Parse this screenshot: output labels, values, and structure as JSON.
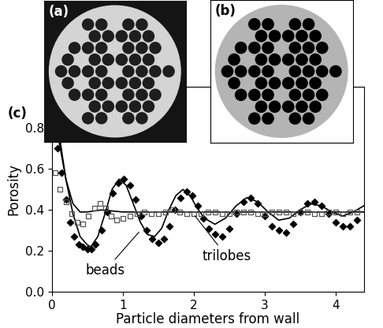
{
  "panel_labels": [
    "(a)",
    "(b)",
    "(c)"
  ],
  "chart_data": {
    "type": "line",
    "xlabel": "Particle diameters from wall",
    "ylabel": "Porosity",
    "xlim": [
      0,
      4.4
    ],
    "ylim": [
      0,
      1.0
    ],
    "xticks": [
      0,
      1,
      2,
      3,
      4
    ],
    "yticks": [
      {
        "value": 0,
        "label": "0.0"
      },
      0.2,
      0.4,
      0.6,
      0.8
    ],
    "grid": false,
    "series": [
      {
        "type": "line",
        "color": "#000000",
        "line_style": "solid",
        "x": [
          0.0,
          0.1,
          0.2,
          0.3,
          0.4,
          0.5,
          0.55,
          0.65,
          0.75,
          0.85,
          0.95,
          1.05,
          1.15,
          1.25,
          1.35,
          1.45,
          1.55,
          1.65,
          1.75,
          1.85,
          1.95,
          2.05,
          2.15,
          2.3,
          2.45,
          2.6,
          2.75,
          2.9,
          3.05,
          3.2,
          3.35,
          3.5,
          3.65,
          3.8,
          3.95,
          4.1,
          4.25,
          4.4
        ],
        "values": [
          1.0,
          0.78,
          0.55,
          0.38,
          0.27,
          0.23,
          0.22,
          0.27,
          0.38,
          0.5,
          0.55,
          0.52,
          0.43,
          0.34,
          0.28,
          0.27,
          0.31,
          0.4,
          0.47,
          0.5,
          0.47,
          0.41,
          0.36,
          0.33,
          0.36,
          0.42,
          0.46,
          0.44,
          0.39,
          0.35,
          0.36,
          0.4,
          0.43,
          0.42,
          0.39,
          0.37,
          0.39,
          0.42
        ]
      },
      {
        "type": "line",
        "color": "#000000",
        "line_style": "solid",
        "x": [
          0.0,
          0.1,
          0.2,
          0.3,
          0.4,
          0.5,
          0.7,
          1.0,
          1.5,
          2.0,
          2.5,
          3.0,
          3.5,
          4.0,
          4.4
        ],
        "values": [
          1.0,
          0.74,
          0.55,
          0.43,
          0.39,
          0.39,
          0.4,
          0.39,
          0.39,
          0.39,
          0.39,
          0.39,
          0.39,
          0.39,
          0.39
        ]
      },
      {
        "type": "scatter",
        "color": "#000000",
        "marker": "filled_diamond",
        "x": [
          0.03,
          0.08,
          0.14,
          0.2,
          0.26,
          0.32,
          0.38,
          0.44,
          0.5,
          0.56,
          0.62,
          0.7,
          0.78,
          0.86,
          0.94,
          1.02,
          1.1,
          1.18,
          1.26,
          1.34,
          1.42,
          1.5,
          1.58,
          1.66,
          1.74,
          1.82,
          1.9,
          1.98,
          2.06,
          2.14,
          2.22,
          2.3,
          2.4,
          2.5,
          2.6,
          2.7,
          2.8,
          2.9,
          3.0,
          3.1,
          3.2,
          3.3,
          3.4,
          3.5,
          3.6,
          3.7,
          3.8,
          3.9,
          4.0,
          4.1,
          4.2,
          4.3
        ],
        "values": [
          0.75,
          0.7,
          0.58,
          0.45,
          0.34,
          0.27,
          0.23,
          0.22,
          0.21,
          0.21,
          0.23,
          0.3,
          0.39,
          0.48,
          0.53,
          0.55,
          0.52,
          0.45,
          0.37,
          0.3,
          0.26,
          0.24,
          0.26,
          0.32,
          0.4,
          0.46,
          0.49,
          0.47,
          0.42,
          0.36,
          0.31,
          0.28,
          0.27,
          0.31,
          0.38,
          0.44,
          0.46,
          0.43,
          0.37,
          0.32,
          0.3,
          0.29,
          0.33,
          0.39,
          0.43,
          0.44,
          0.42,
          0.38,
          0.34,
          0.32,
          0.32,
          0.35
        ]
      },
      {
        "type": "scatter",
        "color": "#555555",
        "marker": "open_square",
        "x": [
          0.05,
          0.12,
          0.2,
          0.28,
          0.36,
          0.44,
          0.52,
          0.6,
          0.68,
          0.76,
          0.84,
          0.92,
          1.0,
          1.1,
          1.2,
          1.3,
          1.4,
          1.5,
          1.6,
          1.7,
          1.8,
          1.9,
          2.0,
          2.1,
          2.2,
          2.3,
          2.4,
          2.5,
          2.6,
          2.7,
          2.8,
          2.9,
          3.0,
          3.1,
          3.2,
          3.3,
          3.4,
          3.5,
          3.6,
          3.7,
          3.8,
          3.9,
          4.0,
          4.1,
          4.2,
          4.3
        ],
        "values": [
          0.58,
          0.5,
          0.44,
          0.38,
          0.34,
          0.33,
          0.37,
          0.41,
          0.43,
          0.41,
          0.37,
          0.35,
          0.36,
          0.37,
          0.38,
          0.39,
          0.38,
          0.38,
          0.39,
          0.4,
          0.39,
          0.38,
          0.38,
          0.38,
          0.39,
          0.39,
          0.38,
          0.38,
          0.39,
          0.39,
          0.39,
          0.38,
          0.38,
          0.39,
          0.39,
          0.39,
          0.38,
          0.39,
          0.39,
          0.38,
          0.38,
          0.39,
          0.39,
          0.38,
          0.39,
          0.39
        ]
      }
    ],
    "annotations": [
      {
        "text": "beads",
        "x": 1.25,
        "y": 0.3
      },
      {
        "text": "trilobes",
        "x": 2.0,
        "y": 0.38
      }
    ]
  }
}
